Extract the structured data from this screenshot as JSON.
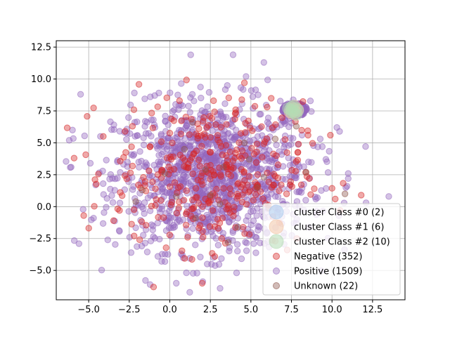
{
  "chart_data": {
    "type": "scatter",
    "title": "",
    "xlabel": "",
    "ylabel": "",
    "xlim": [
      -7.0,
      14.5
    ],
    "ylim": [
      -7.3,
      13.0
    ],
    "xticks": [
      -5.0,
      -2.5,
      0.0,
      2.5,
      5.0,
      7.5,
      10.0,
      12.5
    ],
    "xtick_labels": [
      "−5.0",
      "−2.5",
      "0.0",
      "2.5",
      "5.0",
      "7.5",
      "10.0",
      "12.5"
    ],
    "yticks": [
      -5.0,
      -2.5,
      0.0,
      2.5,
      5.0,
      7.5,
      10.0,
      12.5
    ],
    "ytick_labels": [
      "−5.0",
      "−2.5",
      "0.0",
      "2.5",
      "5.0",
      "7.5",
      "10.0",
      "12.5"
    ],
    "grid": true,
    "legend_position": "lower-right",
    "point_alpha": 0.4,
    "series": [
      {
        "name": "cluster Class #0 (2)",
        "color": "#aac9ec",
        "marker_size": "large",
        "points": [
          [
            7.5,
            7.6
          ],
          [
            7.7,
            7.5
          ]
        ]
      },
      {
        "name": "cluster Class #1 (6)",
        "color": "#f2c6a8",
        "marker_size": "large",
        "points": [
          [
            7.6,
            7.7
          ],
          [
            7.4,
            7.4
          ],
          [
            7.9,
            7.6
          ],
          [
            7.7,
            7.9
          ],
          [
            7.5,
            7.3
          ],
          [
            7.8,
            7.4
          ]
        ]
      },
      {
        "name": "cluster Class #2 (10)",
        "color": "#b4dcb4",
        "marker_size": "large",
        "points": [
          [
            7.6,
            7.5
          ],
          [
            7.8,
            7.7
          ],
          [
            7.4,
            7.6
          ],
          [
            7.7,
            7.3
          ],
          [
            7.5,
            7.8
          ],
          [
            7.9,
            7.5
          ],
          [
            7.3,
            7.7
          ],
          [
            7.6,
            7.9
          ],
          [
            7.8,
            7.2
          ],
          [
            7.5,
            7.4
          ]
        ]
      },
      {
        "name": "Negative (352)",
        "color": "#d62728",
        "count": 352,
        "sample_points": [
          [
            -5.9,
            3.8
          ],
          [
            -4.1,
            5.5
          ],
          [
            -1.0,
            -6.3
          ],
          [
            2.0,
            -6.0
          ],
          [
            9.9,
            5.6
          ],
          [
            11.8,
            0.9
          ],
          [
            6.0,
            7.8
          ],
          [
            4.6,
            9.7
          ],
          [
            0.6,
            8.3
          ],
          [
            -2.3,
            6.3
          ],
          [
            7.2,
            1.0
          ],
          [
            6.5,
            -2.7
          ],
          [
            -2.2,
            -2.3
          ],
          [
            3.2,
            -2.5
          ],
          [
            8.6,
            2.2
          ],
          [
            10.2,
            0.6
          ],
          [
            -3.1,
            -0.3
          ],
          [
            1.1,
            -2.4
          ]
        ],
        "distribution": {
          "center": [
            2.4,
            2.6
          ],
          "spread": [
            2.9,
            2.8
          ]
        }
      },
      {
        "name": "Positive (1509)",
        "color": "#9467bd",
        "count": 1509,
        "sample_points": [
          [
            -5.5,
            8.8
          ],
          [
            -6.0,
            6.0
          ],
          [
            -5.6,
            -2.9
          ],
          [
            -6.2,
            5.2
          ],
          [
            3.5,
            13.8
          ],
          [
            3.9,
            11.9
          ],
          [
            5.8,
            11.3
          ],
          [
            13.5,
            0.8
          ],
          [
            12.1,
            0.3
          ],
          [
            11.0,
            2.6
          ],
          [
            -1.2,
            8.6
          ],
          [
            0.4,
            -6.0
          ],
          [
            3.1,
            -6.4
          ],
          [
            -4.7,
            -0.9
          ],
          [
            9.4,
            4.7
          ],
          [
            10.3,
            6.2
          ],
          [
            -0.3,
            -4.3
          ],
          [
            4.7,
            10.2
          ],
          [
            -4.9,
            3.4
          ],
          [
            9.1,
            0.7
          ],
          [
            11.0,
            2.2
          ]
        ],
        "cluster": {
          "center": [
            7.7,
            7.6
          ],
          "radius": [
            0.75,
            0.55
          ],
          "count": 260
        },
        "distribution": {
          "center": [
            2.6,
            2.4
          ],
          "spread": [
            3.0,
            2.9
          ]
        }
      },
      {
        "name": "Unknown (22)",
        "color": "#8c564b",
        "count": 22,
        "sample_points": [
          [
            2.5,
            0.9
          ],
          [
            4.6,
            5.0
          ],
          [
            6.5,
            5.3
          ],
          [
            7.8,
            6.3
          ],
          [
            1.6,
            -0.9
          ],
          [
            3.3,
            3.1
          ],
          [
            0.4,
            0.8
          ],
          [
            5.4,
            1.5
          ],
          [
            10.8,
            1.0
          ],
          [
            -0.3,
            2.6
          ],
          [
            3.6,
            -2.8
          ],
          [
            2.2,
            2.9
          ],
          [
            4.9,
            3.7
          ],
          [
            6.1,
            -0.1
          ],
          [
            -1.7,
            1.3
          ],
          [
            0.9,
            4.5
          ],
          [
            3.1,
            0.2
          ],
          [
            8.4,
            2.7
          ],
          [
            5.8,
            2.3
          ],
          [
            1.4,
            6.6
          ],
          [
            -2.1,
            0.4
          ],
          [
            4.2,
            -1.6
          ]
        ]
      }
    ]
  }
}
